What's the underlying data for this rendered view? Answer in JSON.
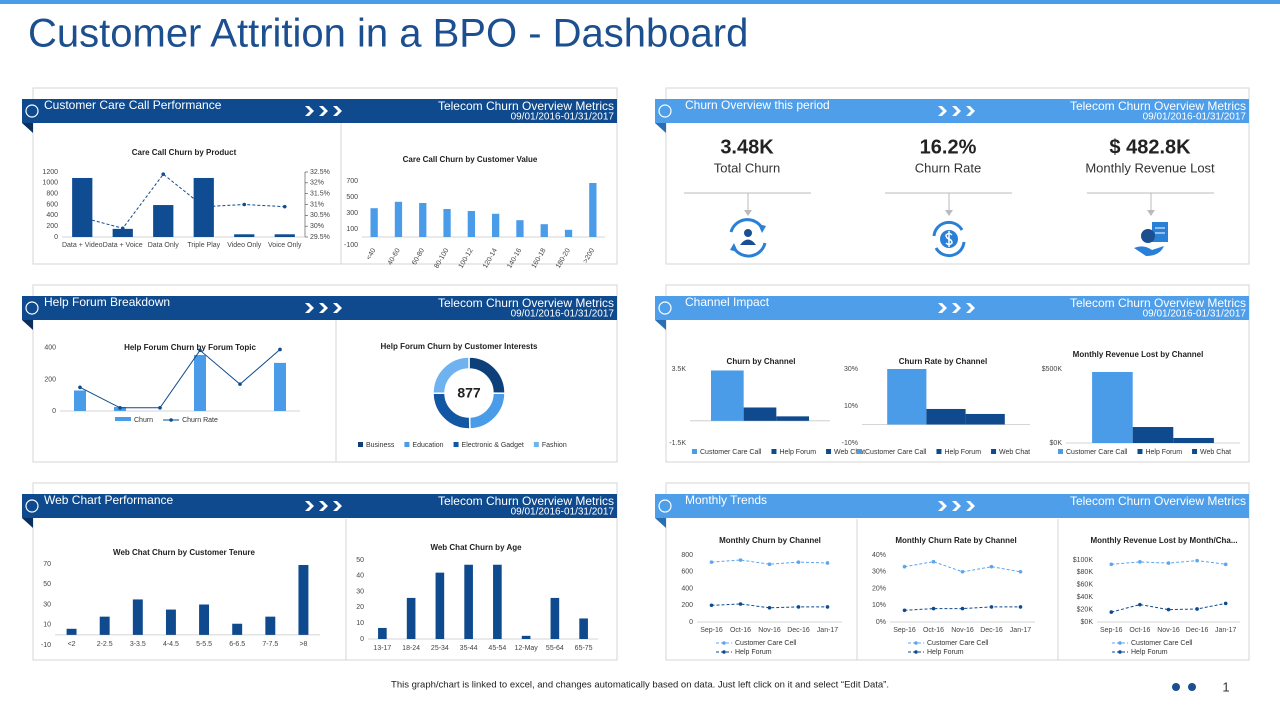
{
  "title": "Customer Attrition in a BPO - Dashboard",
  "panels": [
    {
      "title": "Customer Care Call Performance",
      "subtitle": "Telecom Churn Overview  Metrics",
      "date": "09/01/2016-01/31/2017"
    },
    {
      "title": "Churn Overview  this period",
      "subtitle": "Telecom Churn Overview  Metrics",
      "date": "09/01/2016-01/31/2017"
    },
    {
      "title": "Help Forum Breakdown",
      "subtitle": "Telecom Churn Overview  Metrics",
      "date": "09/01/2016-01/31/2017"
    },
    {
      "title": "Channel Impact",
      "subtitle": "Telecom Churn Overview  Metrics",
      "date": "09/01/2016-01/31/2017"
    },
    {
      "title": "Web Chart Performance",
      "subtitle": "Telecom Churn Overview  Metrics",
      "date": "09/01/2016-01/31/2017"
    },
    {
      "title": "Monthly Trends",
      "subtitle": "Telecom Churn Overview  Metrics"
    }
  ],
  "kpis": [
    {
      "value": "3.48K",
      "label": "Total Churn"
    },
    {
      "value": "16.2%",
      "label": "Churn Rate"
    },
    {
      "value": "$ 482.8K",
      "label": "Monthly Revenue Lost"
    }
  ],
  "chart_data": [
    {
      "type": "bar",
      "title": "Care Call Churn by Product",
      "categories": [
        "Data + Video",
        "Data + Voice",
        "Data Only",
        "Triple Play",
        "Video Only",
        "Voice Only"
      ],
      "series": [
        {
          "type": "bar",
          "color": "#0f4c92",
          "values": [
            1090,
            150,
            590,
            1090,
            50,
            50
          ]
        },
        {
          "type": "line",
          "axis": "y2",
          "dashed": true,
          "color": "#0f4c92",
          "values": [
            30.4,
            29.9,
            32.4,
            30.9,
            31.0,
            30.9
          ]
        }
      ],
      "ylim": [
        0,
        1200
      ],
      "yticks": [
        0,
        200,
        400,
        600,
        800,
        1000,
        1200
      ],
      "y2lim": [
        29.5,
        32.5
      ],
      "y2ticks": [
        {
          "value": 29.5,
          "label": "29.5%"
        },
        {
          "value": 30,
          "label": "30%"
        },
        {
          "value": 30.5,
          "label": "30.5%"
        },
        {
          "value": 31,
          "label": "31%"
        },
        {
          "value": 31.5,
          "label": "31.5%"
        },
        {
          "value": 32,
          "label": "32%"
        },
        {
          "value": 32.5,
          "label": "32.5%"
        }
      ]
    },
    {
      "type": "bar",
      "title": "Care Call Churn by Customer Value",
      "categories": [
        "<40",
        "40-60",
        "60-80",
        "80-100",
        "100-12",
        "120-14",
        "140-16",
        "160-18",
        "180-20",
        ">200"
      ],
      "values": [
        360,
        440,
        425,
        350,
        325,
        290,
        210,
        160,
        90,
        675
      ],
      "color": "#4a9be8",
      "ylim": [
        -100,
        700
      ],
      "yticks": [
        -100,
        100,
        300,
        500,
        700
      ]
    },
    {
      "type": "bar",
      "title": "Help Forum Churn by Forum Topic",
      "categories": [
        null,
        null,
        null,
        null,
        null,
        null
      ],
      "series": [
        {
          "name": "Churn",
          "type": "bar",
          "color": "#4a9be8",
          "values": [
            130,
            25,
            0,
            355,
            0,
            305
          ]
        },
        {
          "name": "Churn Rate",
          "type": "line",
          "color": "#0e4a8d",
          "values": [
            150,
            20,
            20,
            385,
            170,
            390
          ]
        }
      ],
      "ylim": [
        0,
        450
      ],
      "yticks": [
        0,
        200,
        400
      ]
    },
    {
      "type": "donut",
      "title": "Help Forum Churn by Customer Interests",
      "total": 877,
      "categories": [
        "Business",
        "Education",
        "Electronic & Gadget",
        "Fashion"
      ],
      "values": [
        220,
        215,
        222,
        220
      ],
      "colors": [
        "#0d3f7a",
        "#4a9be8",
        "#1257a3",
        "#6fb2f0"
      ]
    },
    {
      "type": "bar",
      "title": "Churn  by Channel",
      "categories": [
        null
      ],
      "series": [
        {
          "name": "Customer Care Call",
          "color": "#4a9be8",
          "values": [
            3400
          ]
        },
        {
          "name": "Help Forum",
          "color": "#0e4a8d",
          "values": [
            900
          ]
        },
        {
          "name": "Web Chat",
          "color": "#0e4a8d",
          "values": [
            300
          ]
        }
      ],
      "ylim": [
        -1500,
        3500
      ],
      "yticks": [
        {
          "value": -1500,
          "label": "-1.5K"
        },
        {
          "value": 3500,
          "label": "3.5K"
        }
      ]
    },
    {
      "type": "bar",
      "title": "Churn Rate by Channel",
      "categories": [
        null
      ],
      "series": [
        {
          "name": "Customer Care Call",
          "color": "#4a9be8",
          "values": [
            30
          ]
        },
        {
          "name": "Help Forum",
          "color": "#0e4a8d",
          "values": [
            8.4
          ]
        },
        {
          "name": "Web Chat",
          "color": "#0e4a8d",
          "values": [
            5.7
          ]
        }
      ],
      "ylim": [
        -10,
        30
      ],
      "yticks": [
        {
          "value": -10,
          "label": "-10%"
        },
        {
          "value": 10,
          "label": "10%"
        },
        {
          "value": 30,
          "label": "30%"
        }
      ]
    },
    {
      "type": "bar",
      "title": "Monthly  Revenue  Lost  by Channel",
      "categories": [
        null
      ],
      "series": [
        {
          "name": "Customer Care Call",
          "color": "#4a9be8",
          "values": [
            480000
          ]
        },
        {
          "name": "Help Forum",
          "color": "#0e4a8d",
          "values": [
            108000
          ]
        },
        {
          "name": "Web Chat",
          "color": "#0e4a8d",
          "values": [
            34000
          ]
        }
      ],
      "ylim": [
        0,
        500000
      ],
      "yticks": [
        {
          "value": 0,
          "label": "$0K"
        },
        {
          "value": 500000,
          "label": "$500K"
        }
      ]
    },
    {
      "type": "bar",
      "title": "Web Chat Churn by Customer Tenure",
      "categories": [
        "<2",
        "2-2.5",
        "3-3.5",
        "4-4.5",
        "5-5.5",
        "6-6.5",
        "7-7.5",
        ">8"
      ],
      "values": [
        6,
        18,
        35,
        25,
        30,
        11,
        18,
        69
      ],
      "color": "#0e4a8d",
      "ylim": [
        -10,
        70
      ],
      "yticks": [
        -10,
        10,
        30,
        50,
        70
      ]
    },
    {
      "type": "bar",
      "title": "Web Chat Churn by Age",
      "categories": [
        "13-17",
        "18-24",
        "25-34",
        "35-44",
        "45-54",
        "12-May",
        "55-64",
        "65-75"
      ],
      "values": [
        7,
        26,
        42,
        47,
        47,
        2,
        26,
        13
      ],
      "color": "#0e4a8d",
      "ylim": [
        0,
        50
      ],
      "yticks": [
        0,
        10,
        20,
        30,
        40,
        50
      ]
    },
    {
      "type": "line",
      "title": "Monthly Churn by Channel",
      "categories": [
        "Sep-16",
        "Oct-16",
        "Nov-16",
        "Dec-16",
        "Jan-17"
      ],
      "series": [
        {
          "name": "Customer Care Cell",
          "dashed": true,
          "color": "#5aa6ef",
          "values": [
            715,
            740,
            690,
            715,
            705
          ]
        },
        {
          "name": "Help Forum",
          "dashed": true,
          "color": "#0e4a8d",
          "values": [
            200,
            215,
            170,
            180,
            180
          ]
        }
      ],
      "ylim": [
        0,
        800
      ],
      "yticks": [
        0,
        200,
        400,
        600,
        800
      ]
    },
    {
      "type": "line",
      "title": "Monthly Churn Rate by Channel",
      "categories": [
        "Sep-16",
        "Oct-16",
        "Nov-16",
        "Dec-16",
        "Jan-17"
      ],
      "series": [
        {
          "name": "Customer Care Cell",
          "dashed": true,
          "color": "#5aa6ef",
          "values": [
            33,
            36,
            30,
            33,
            30
          ]
        },
        {
          "name": "Help Forum",
          "dashed": true,
          "color": "#0e4a8d",
          "values": [
            7,
            8,
            8,
            9,
            9
          ]
        }
      ],
      "ylim": [
        0,
        40
      ],
      "yticks": [
        {
          "value": 0,
          "label": "0%"
        },
        {
          "value": 10,
          "label": "10%"
        },
        {
          "value": 20,
          "label": "20%"
        },
        {
          "value": 30,
          "label": "30%"
        },
        {
          "value": 40,
          "label": "40%"
        }
      ]
    },
    {
      "type": "line",
      "title": "Monthly Revenue Lost by Month/Cha...",
      "categories": [
        "Sep-16",
        "Oct-16",
        "Nov-16",
        "Dec-16",
        "Jan-17"
      ],
      "series": [
        {
          "name": "Customer Care Cell",
          "dashed": true,
          "color": "#5aa6ef",
          "values": [
            93000,
            97000,
            95000,
            99000,
            93000
          ]
        },
        {
          "name": "Help Forum",
          "dashed": true,
          "color": "#0e4a8d",
          "values": [
            16000,
            28000,
            20000,
            21000,
            30000
          ]
        }
      ],
      "ylim": [
        0,
        100000
      ],
      "yticks": [
        {
          "value": 0,
          "label": "$0K"
        },
        {
          "value": 20000,
          "label": "$20K"
        },
        {
          "value": 40000,
          "label": "$40K"
        },
        {
          "value": 60000,
          "label": "$60K"
        },
        {
          "value": 80000,
          "label": "$80K"
        },
        {
          "value": 100000,
          "label": "$100K"
        }
      ]
    }
  ],
  "footer": "This graph/chart is linked to excel, and changes automatically based on data. Just left click on it and select “Edit Data”.",
  "page_number": "1"
}
